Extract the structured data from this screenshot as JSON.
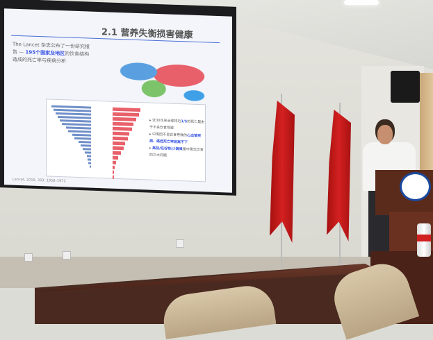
{
  "slide": {
    "title": "2.1 营养失衡损害健康",
    "intro_prefix": "The Lancet 杂志公布了一份研究报告 — ",
    "intro_highlight": "195个国家及地区",
    "intro_suffix": "的饮食结构造成的死亡率与疾病分析",
    "bullets": [
      {
        "pre": "近30年来全球将近",
        "hl": "1/5",
        "post": "的死亡是由于不良饮食导致"
      },
      {
        "pre": "中国因不良饮食导致的",
        "hl": "心血管疾病、癌症死亡率居高不下",
        "post": ""
      },
      {
        "pre": "",
        "hl": "高盐/低谷物/少蔬果",
        "post": "是中国式饮食的三大问题"
      }
    ],
    "citation": "Lancet, 2019, 393: 1958–1972"
  },
  "colors": {
    "highlight": "#3c57e6",
    "bar_left": "#6f8fc9",
    "bar_right": "#e8606a",
    "flag": "#c81818"
  }
}
